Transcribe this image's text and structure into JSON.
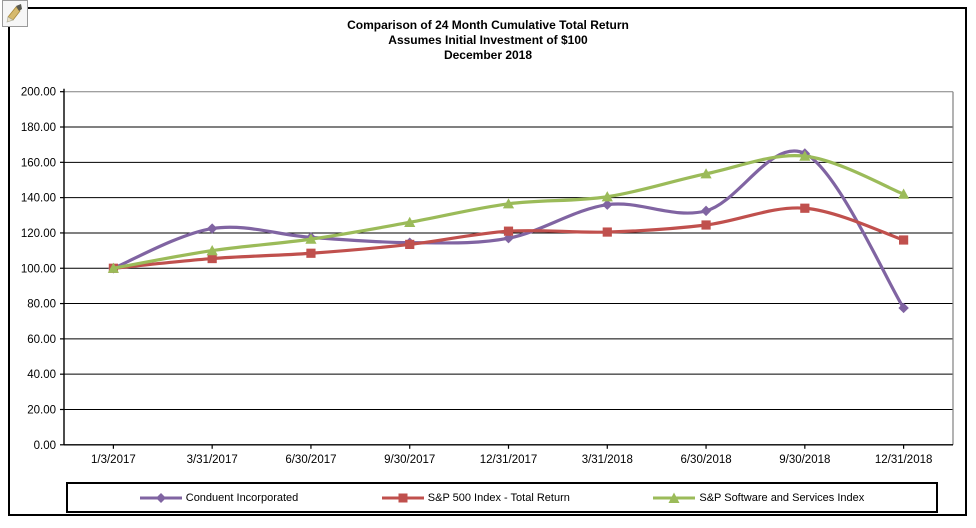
{
  "window": {
    "corner_icon": "image-placeholder-icon"
  },
  "chart_data": {
    "type": "line",
    "title_lines": [
      "Comparison of 24 Month Cumulative Total Return",
      "Assumes Initial Investment of $100",
      "December 2018"
    ],
    "categories": [
      "1/3/2017",
      "3/31/2017",
      "6/30/2017",
      "9/30/2017",
      "12/31/2017",
      "3/31/2018",
      "6/30/2018",
      "9/30/2018",
      "12/31/2018"
    ],
    "series": [
      {
        "name": "Conduent Incorporated",
        "color": "#8064A2",
        "marker": "diamond",
        "values": [
          100.0,
          122.5,
          117.5,
          114.5,
          117.0,
          136.0,
          132.5,
          165.0,
          77.5
        ]
      },
      {
        "name": "S&P 500 Index - Total Return",
        "color": "#C0504D",
        "marker": "square",
        "values": [
          100.0,
          105.5,
          108.5,
          113.5,
          121.0,
          120.5,
          124.5,
          134.0,
          116.0
        ]
      },
      {
        "name": "S&P Software and Services Index",
        "color": "#9BBB59",
        "marker": "triangle",
        "values": [
          100.0,
          110.0,
          116.5,
          126.0,
          136.5,
          140.5,
          153.5,
          163.5,
          142.0
        ]
      }
    ],
    "ylim": [
      0,
      200
    ],
    "ytick_step": 20,
    "ytick_labels": [
      "0.00",
      "20.00",
      "40.00",
      "60.00",
      "80.00",
      "100.00",
      "120.00",
      "140.00",
      "160.00",
      "180.00",
      "200.00"
    ],
    "grid": true,
    "grid_color": "#000000",
    "plot_border_color": "#808080",
    "legend_position": "bottom",
    "smoothed_lines": true
  }
}
